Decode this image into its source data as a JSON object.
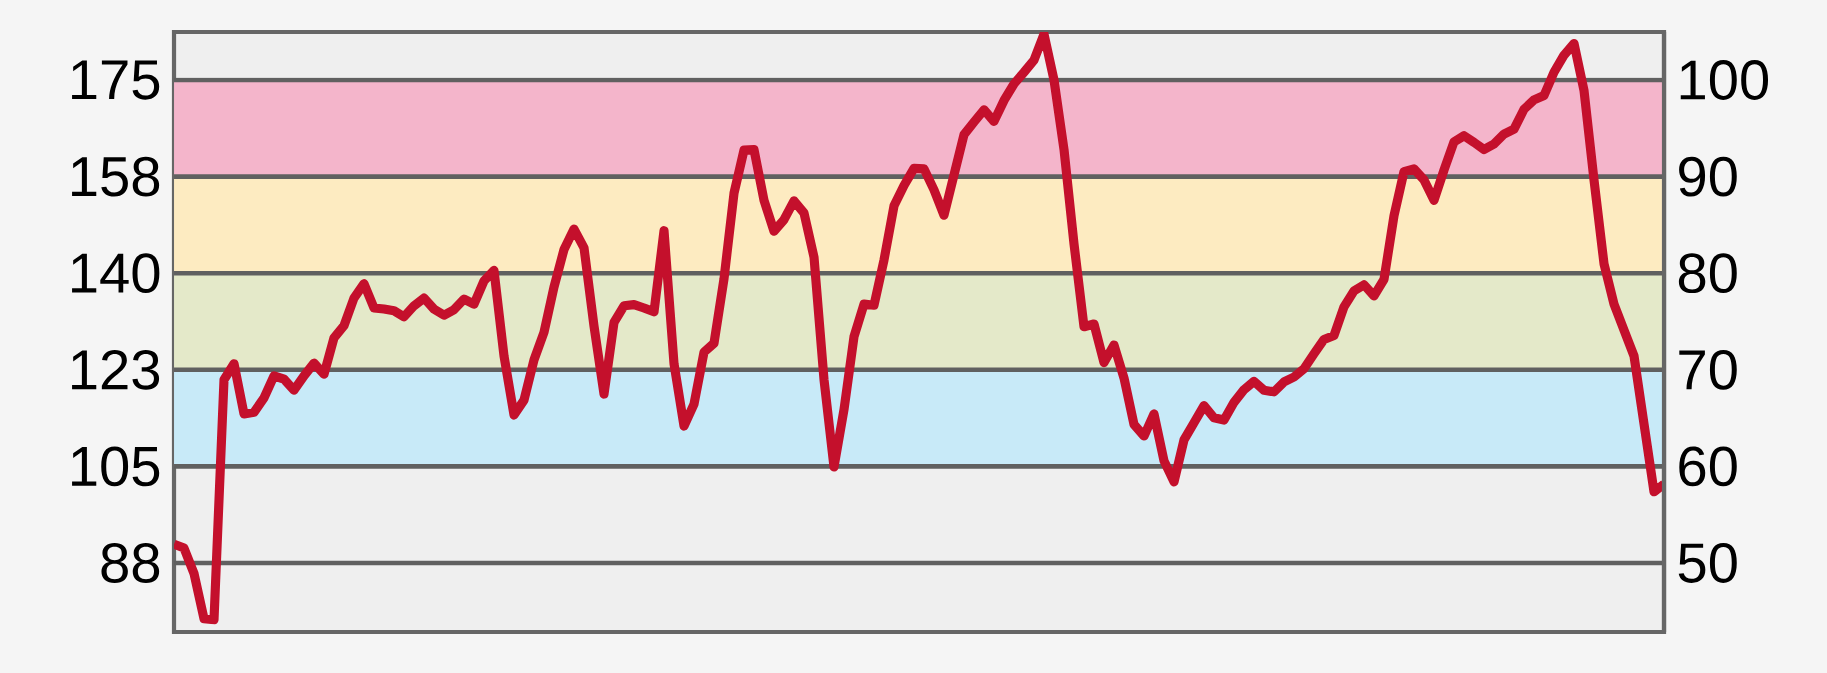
{
  "chart_data": {
    "type": "line",
    "color": "#c4102c",
    "categories": [
      null,
      null,
      null,
      null,
      null,
      null,
      null,
      null,
      null,
      null,
      null,
      null,
      null,
      null,
      null,
      null,
      null,
      null,
      null,
      null,
      null,
      null,
      null,
      null,
      null,
      null,
      null,
      null,
      null,
      null,
      null,
      null,
      null,
      null,
      null,
      null,
      null,
      null,
      null,
      null,
      null,
      null,
      null,
      null,
      null,
      null,
      null,
      null,
      null,
      null,
      null,
      null,
      null,
      null,
      null,
      null,
      null,
      null,
      null,
      null,
      null,
      null,
      null,
      null,
      null,
      null,
      null,
      null,
      null,
      null,
      null,
      null,
      null,
      null,
      null,
      null,
      null,
      null,
      null,
      null,
      null,
      null,
      null,
      null,
      null,
      null,
      null,
      null,
      null,
      null,
      null,
      null,
      null,
      null,
      null,
      null,
      null,
      null,
      null,
      null,
      null,
      null,
      null,
      null,
      null,
      null,
      null,
      null,
      null,
      null,
      null,
      null,
      null,
      null,
      null,
      null,
      null,
      null,
      null,
      null,
      null,
      null,
      null,
      null,
      null,
      null,
      null,
      null,
      null,
      null,
      null,
      null,
      null,
      null,
      null,
      null,
      null,
      null,
      null,
      null,
      null,
      null,
      null,
      null,
      null,
      null,
      null,
      null,
      null,
      null
    ],
    "values": [
      90.9,
      90.2,
      85.6,
      77.4,
      77.2,
      120.7,
      123.6,
      114.5,
      114.8,
      117.4,
      121.4,
      120.8,
      118.8,
      121.4,
      123.7,
      121.7,
      128.3,
      130.5,
      135.5,
      138.1,
      133.7,
      133.5,
      133.2,
      132.1,
      134.1,
      135.5,
      133.5,
      132.4,
      133.4,
      135.3,
      134.4,
      138.6,
      140.5,
      125.0,
      114.3,
      117.0,
      124.3,
      129.3,
      137.5,
      144.3,
      148.0,
      144.6,
      130.4,
      118.1,
      131.1,
      134.1,
      134.3,
      133.7,
      133.0,
      147.7,
      123.6,
      112.3,
      116.3,
      125.7,
      127.3,
      139.0,
      154.5,
      162.3,
      162.4,
      153.2,
      147.6,
      149.7,
      153.1,
      150.9,
      142.9,
      120.7,
      104.9,
      115.3,
      128.5,
      134.4,
      134.2,
      142.4,
      152.2,
      155.9,
      159.0,
      158.9,
      155.1,
      150.5,
      157.8,
      165.1,
      167.4,
      169.6,
      167.5,
      171.3,
      174.3,
      176.4,
      178.6,
      183.3,
      175.0,
      162.4,
      145.3,
      130.3,
      130.8,
      123.8,
      127.0,
      121.0,
      112.6,
      110.5,
      114.5,
      106.0,
      102.2,
      109.8,
      112.9,
      116.0,
      113.8,
      113.4,
      116.6,
      118.9,
      120.4,
      118.8,
      118.5,
      120.3,
      121.2,
      122.7,
      125.4,
      128.0,
      128.7,
      133.9,
      136.8,
      137.9,
      135.9,
      138.9,
      150.4,
      158.4,
      158.9,
      156.9,
      153.2,
      158.7,
      163.8,
      164.9,
      163.7,
      162.4,
      163.4,
      165.2,
      166.1,
      169.7,
      171.4,
      172.2,
      176.4,
      179.5,
      181.6,
      173.1,
      156.9,
      141.7,
      134.4,
      129.7,
      125.0,
      112.7,
      100.4,
      101.8
    ],
    "ylim": [
      75,
      183.7
    ],
    "yticks": [
      {
        "value": 87.5,
        "label": "88"
      },
      {
        "value": 105,
        "label": "105"
      },
      {
        "value": 122.5,
        "label": "123"
      },
      {
        "value": 140,
        "label": "140"
      },
      {
        "value": 157.5,
        "label": "158"
      },
      {
        "value": 175,
        "label": "175"
      }
    ],
    "y2lim": [
      42.857,
      104.971
    ],
    "y2ticks": [
      50,
      60,
      70,
      80,
      90,
      100
    ],
    "bands": [
      {
        "axis": "y",
        "from": 105,
        "to": 122.5,
        "color": "#c8eaf8"
      },
      {
        "axis": "y",
        "from": 122.5,
        "to": 140,
        "color": "#e4e9c9"
      },
      {
        "axis": "y",
        "from": 140,
        "to": 157.5,
        "color": "#fdebc1"
      },
      {
        "axis": "y",
        "from": 157.5,
        "to": 175,
        "color": "#f4b5cb"
      }
    ],
    "grid": "y"
  }
}
